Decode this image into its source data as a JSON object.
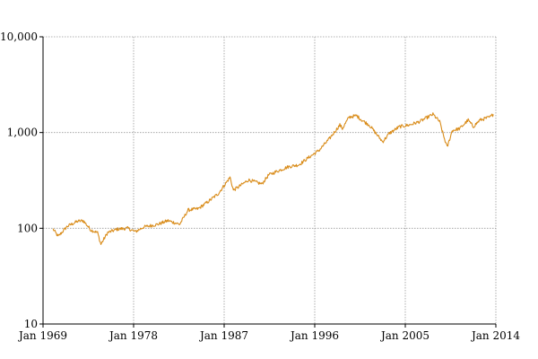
{
  "chart_data": {
    "type": "line",
    "title": "",
    "xlabel": "",
    "ylabel": "",
    "y_scale": "log",
    "ylim": [
      10,
      10000
    ],
    "xlim": [
      "1969-01",
      "2014-01"
    ],
    "grid": true,
    "legend": "none",
    "y_ticks": [
      10,
      100,
      1000,
      10000
    ],
    "y_tick_labels": [
      "10",
      "100",
      "1,000",
      "10,000"
    ],
    "x_ticks": [
      "1969-01",
      "1978-01",
      "1987-01",
      "1996-01",
      "2005-01",
      "2014-01"
    ],
    "x_tick_labels": [
      "Jan 1969",
      "Jan 1978",
      "Jan 1987",
      "Jan 1996",
      "Jan 2005",
      "Jan 2014"
    ],
    "series": [
      {
        "color": "#d98c1a",
        "x": [
          "1970-01",
          "1970-07",
          "1971-06",
          "1972-06",
          "1973-01",
          "1973-10",
          "1974-06",
          "1974-10",
          "1975-06",
          "1976-06",
          "1977-06",
          "1978-03",
          "1979-01",
          "1980-06",
          "1981-06",
          "1982-08",
          "1983-06",
          "1984-06",
          "1985-06",
          "1986-06",
          "1987-08",
          "1987-12",
          "1988-06",
          "1989-06",
          "1990-10",
          "1991-06",
          "1992-06",
          "1993-06",
          "1994-06",
          "1995-06",
          "1996-06",
          "1997-06",
          "1998-07",
          "1998-10",
          "1999-06",
          "2000-03",
          "2000-09",
          "2001-06",
          "2002-10",
          "2003-06",
          "2004-06",
          "2005-06",
          "2006-06",
          "2007-10",
          "2008-06",
          "2008-11",
          "2009-03",
          "2009-09",
          "2010-06",
          "2011-04",
          "2011-10",
          "2012-06",
          "2013-06",
          "2013-10"
        ],
        "values": [
          98,
          82,
          105,
          118,
          120,
          96,
          90,
          68,
          90,
          98,
          100,
          92,
          103,
          110,
          120,
          110,
          155,
          160,
          190,
          230,
          340,
          250,
          270,
          320,
          290,
          360,
          400,
          440,
          460,
          550,
          650,
          850,
          1200,
          1100,
          1450,
          1500,
          1350,
          1200,
          800,
          980,
          1150,
          1200,
          1300,
          1550,
          1300,
          900,
          700,
          1050,
          1100,
          1350,
          1150,
          1350,
          1450,
          1550
        ]
      }
    ]
  }
}
